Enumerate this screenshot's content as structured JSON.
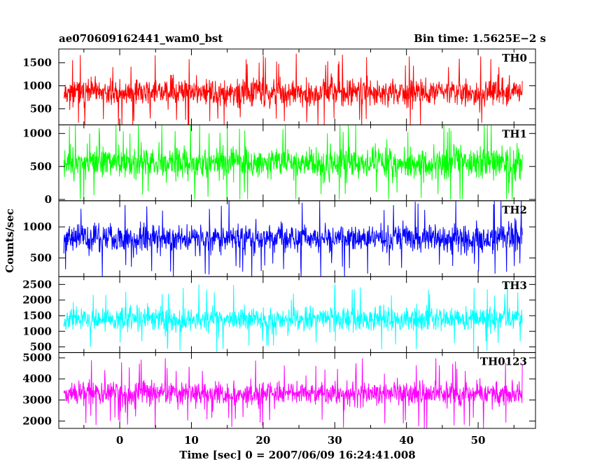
{
  "chart_data": {
    "type": "line",
    "title": "ae070609162441_wam0_bst",
    "bin_time_label": "Bin time: 1.5625E−2 s",
    "xlabel": "Time [sec] 0 = 2007/06/09 16:24:41.008",
    "ylabel": "Counts/sec",
    "xlim": [
      -8.5,
      58
    ],
    "x_ticks": [
      0,
      10,
      20,
      30,
      40,
      50
    ],
    "x_data_range": [
      -7.8,
      56.2
    ],
    "grid": false,
    "panels": [
      {
        "name": "TH0",
        "color": "#ff0000",
        "ylim": [
          150,
          1800
        ],
        "y_ticks": [
          500,
          1000,
          1500
        ],
        "mean": 850,
        "noise": 330,
        "min": 150,
        "max": 1800,
        "seed": 11
      },
      {
        "name": "TH1",
        "color": "#00ff00",
        "ylim": [
          -20,
          1130
        ],
        "y_ticks": [
          0,
          500,
          1000
        ],
        "mean": 560,
        "noise": 270,
        "min": 0,
        "max": 1130,
        "seed": 23
      },
      {
        "name": "TH2",
        "color": "#0000ff",
        "ylim": [
          200,
          1420
        ],
        "y_ticks": [
          500,
          1000
        ],
        "mean": 820,
        "noise": 250,
        "min": 200,
        "max": 1420,
        "seed": 37
      },
      {
        "name": "TH3",
        "color": "#00ffff",
        "ylim": [
          320,
          2750
        ],
        "y_ticks": [
          500,
          1000,
          1500,
          2000,
          2500
        ],
        "mean": 1400,
        "noise": 430,
        "min": 320,
        "max": 2750,
        "seed": 53
      },
      {
        "name": "TH0123",
        "color": "#ff00ff",
        "ylim": [
          1650,
          5250
        ],
        "y_ticks": [
          2000,
          3000,
          4000,
          5000
        ],
        "mean": 3300,
        "noise": 650,
        "min": 1650,
        "max": 5250,
        "seed": 71
      }
    ]
  }
}
